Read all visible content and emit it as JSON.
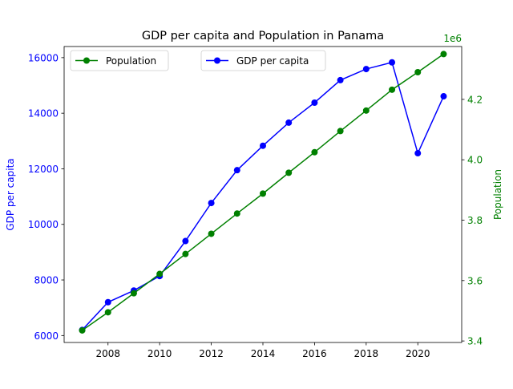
{
  "chart_data": {
    "type": "line",
    "title": "GDP per capita and Population in Panama",
    "xlabel": "",
    "x": [
      2007,
      2008,
      2009,
      2010,
      2011,
      2012,
      2013,
      2014,
      2015,
      2016,
      2017,
      2018,
      2019,
      2020,
      2021
    ],
    "xlim": [
      2006.3,
      2021.7
    ],
    "xticks": [
      2008,
      2010,
      2012,
      2014,
      2016,
      2018,
      2020
    ],
    "left_axis": {
      "label": "GDP per capita",
      "color": "#0000ff",
      "ylim": [
        5750,
        16400
      ],
      "ticks": [
        6000,
        8000,
        10000,
        12000,
        14000,
        16000
      ]
    },
    "right_axis": {
      "label": "Population",
      "color": "#008000",
      "offset_text": "1e6",
      "scale": 1000000,
      "ylim": [
        3395000,
        4375000
      ],
      "ticks": [
        3400000,
        3600000,
        3800000,
        4000000,
        4200000
      ],
      "tick_labels": [
        "3.4",
        "3.6",
        "3.8",
        "4.0",
        "4.2"
      ]
    },
    "series": [
      {
        "name": "GDP per capita",
        "axis": "left",
        "color": "#0000ff",
        "marker": "circle",
        "values": [
          6200,
          7200,
          7620,
          8140,
          9400,
          10770,
          11950,
          12830,
          13660,
          14380,
          15190,
          15590,
          15830,
          12560,
          14610
        ]
      },
      {
        "name": "Population",
        "axis": "right",
        "color": "#008000",
        "marker": "circle",
        "values": [
          3435000,
          3495000,
          3558000,
          3622000,
          3688000,
          3755000,
          3822000,
          3888000,
          3957000,
          4025000,
          4095000,
          4163000,
          4232000,
          4290000,
          4350000
        ]
      }
    ],
    "legends": [
      {
        "placement": "upper-left",
        "entries": [
          "Population"
        ]
      },
      {
        "placement": "upper-center",
        "entries": [
          "GDP per capita"
        ]
      }
    ],
    "grid": false
  }
}
